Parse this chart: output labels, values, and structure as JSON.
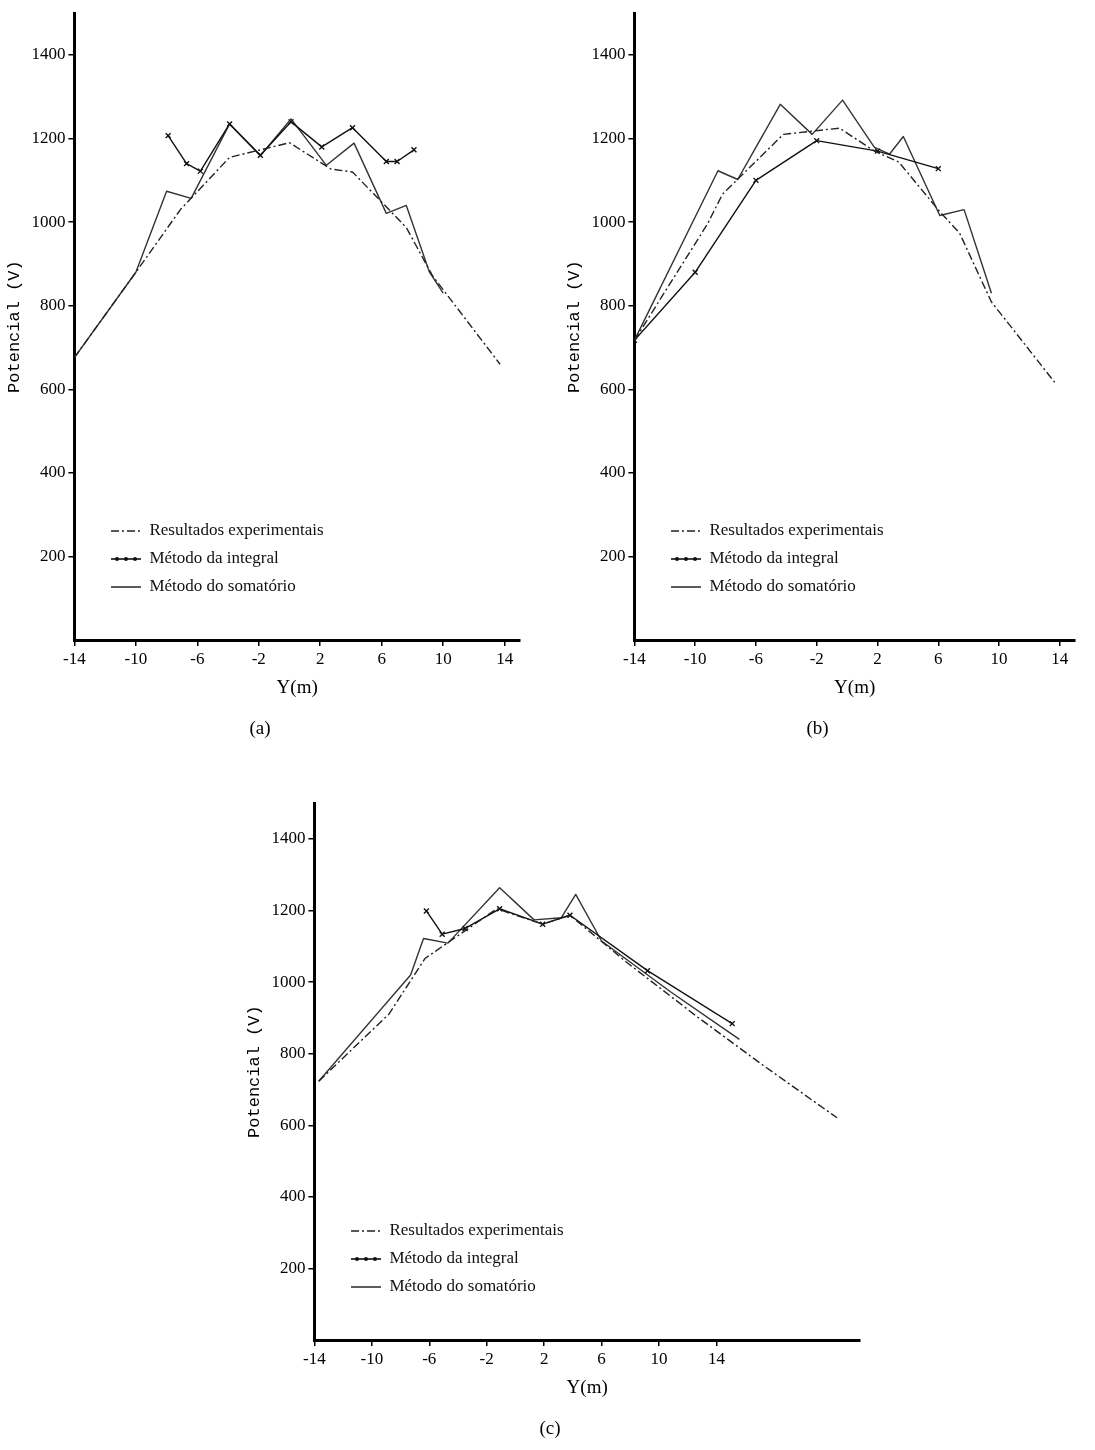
{
  "chart_data": [
    {
      "type": "line",
      "title": "(a)",
      "xlabel": "Y(m)",
      "ylabel": "Potencial (V)",
      "xlim": [
        -14,
        15
      ],
      "xticks": [
        -14,
        -10,
        -6,
        -2,
        2,
        6,
        10,
        14
      ],
      "ylim": [
        0,
        1500
      ],
      "yticks": [
        200,
        400,
        600,
        800,
        1000,
        1200,
        1400
      ],
      "grid": false,
      "legend": "bottom left",
      "series": [
        {
          "name": "Resultados experimentais",
          "color": "#222222",
          "line_style": "dashed",
          "x": [
            -14,
            -10,
            -7.1,
            -3.9,
            0,
            2.7,
            4.1,
            7.6,
            9.3,
            13.7
          ],
          "values": [
            676,
            880,
            1030,
            1155,
            1190,
            1127,
            1120,
            987,
            872,
            660
          ]
        },
        {
          "name": "Método da integral",
          "color": "#111111",
          "line_style": "solid",
          "marker": "cross",
          "x": [
            -7.9,
            -6.7,
            -5.8,
            -3.9,
            -1.9,
            0.1,
            2.1,
            4.1,
            6.3,
            7,
            8.1
          ],
          "values": [
            1207,
            1140,
            1122,
            1235,
            1160,
            1240,
            1180,
            1226,
            1145,
            1145,
            1173
          ]
        },
        {
          "name": "Método do somatório",
          "color": "#333333",
          "line_style": "solid",
          "x": [
            -14,
            -10,
            -8,
            -6.4,
            -3.9,
            -1.9,
            0.1,
            2.4,
            4.2,
            6.3,
            7.6,
            9.1,
            10
          ],
          "values": [
            676,
            880,
            1074,
            1057,
            1235,
            1159,
            1247,
            1136,
            1189,
            1021,
            1040,
            881,
            830
          ]
        }
      ]
    },
    {
      "type": "line",
      "title": "(b)",
      "xlabel": "Y(m)",
      "ylabel": "Potencial (V)",
      "xlim": [
        -14,
        15
      ],
      "xticks": [
        -14,
        -10,
        -6,
        -2,
        2,
        6,
        10,
        14
      ],
      "ylim": [
        0,
        1500
      ],
      "yticks": [
        200,
        400,
        600,
        800,
        1000,
        1200,
        1400
      ],
      "grid": false,
      "legend": "bottom left",
      "series": [
        {
          "name": "Resultados experimentais",
          "color": "#222222",
          "line_style": "dashed",
          "x": [
            -14,
            -9.2,
            -8.2,
            -4.2,
            -0.5,
            1.8,
            3.4,
            6.1,
            7.4,
            9.5,
            13.7
          ],
          "values": [
            717,
            995,
            1067,
            1210,
            1225,
            1170,
            1144,
            1025,
            974,
            809,
            615
          ]
        },
        {
          "name": "Método da integral",
          "color": "#111111",
          "line_style": "solid",
          "marker": "cross",
          "x": [
            -14,
            -10,
            -6,
            -2,
            2,
            6
          ],
          "values": [
            717,
            880,
            1100,
            1195,
            1170,
            1128
          ]
        },
        {
          "name": "Método do somatório",
          "color": "#333333",
          "line_style": "solid",
          "x": [
            -14,
            -8.5,
            -7.2,
            -4.4,
            -2.3,
            -0.3,
            1.8,
            2.8,
            3.7,
            6.1,
            7.7,
            9.5
          ],
          "values": [
            717,
            1123,
            1102,
            1282,
            1210,
            1292,
            1179,
            1163,
            1205,
            1016,
            1030,
            830
          ]
        }
      ]
    },
    {
      "type": "line",
      "title": "(c)",
      "xlabel": "Y(m)",
      "ylabel": "Potencial (V)",
      "xlim": [
        -14,
        24
      ],
      "xticks": [
        -14,
        -10,
        -6,
        -2,
        2,
        6,
        10,
        14
      ],
      "ylim": [
        0,
        1500
      ],
      "yticks": [
        200,
        400,
        600,
        800,
        1000,
        1200,
        1400
      ],
      "grid": false,
      "legend": "bottom left",
      "series": [
        {
          "name": "Resultados experimentais",
          "color": "#222222",
          "line_style": "dashed",
          "x": [
            -13.7,
            -8.8,
            -6.3,
            -1.3,
            1.9,
            3.8,
            7.7,
            12.7,
            17.2,
            22.4
          ],
          "values": [
            723,
            911,
            1066,
            1205,
            1162,
            1187,
            1057,
            902,
            769,
            621
          ]
        },
        {
          "name": "Método da integral",
          "color": "#111111",
          "line_style": "solid",
          "marker": "cross",
          "x": [
            -6.2,
            -5.1,
            -3.5,
            -1.1,
            1.9,
            3.8,
            9.2,
            15.1
          ],
          "values": [
            1199,
            1134,
            1150,
            1205,
            1162,
            1187,
            1032,
            884
          ]
        },
        {
          "name": "Método do somatório",
          "color": "#333333",
          "line_style": "solid",
          "x": [
            -13.7,
            -7.3,
            -6.4,
            -4.7,
            -1.1,
            1.3,
            3.2,
            4.2,
            6,
            10.8,
            15.6
          ],
          "values": [
            723,
            1020,
            1122,
            1109,
            1264,
            1174,
            1180,
            1245,
            1115,
            973,
            840
          ]
        }
      ]
    }
  ]
}
